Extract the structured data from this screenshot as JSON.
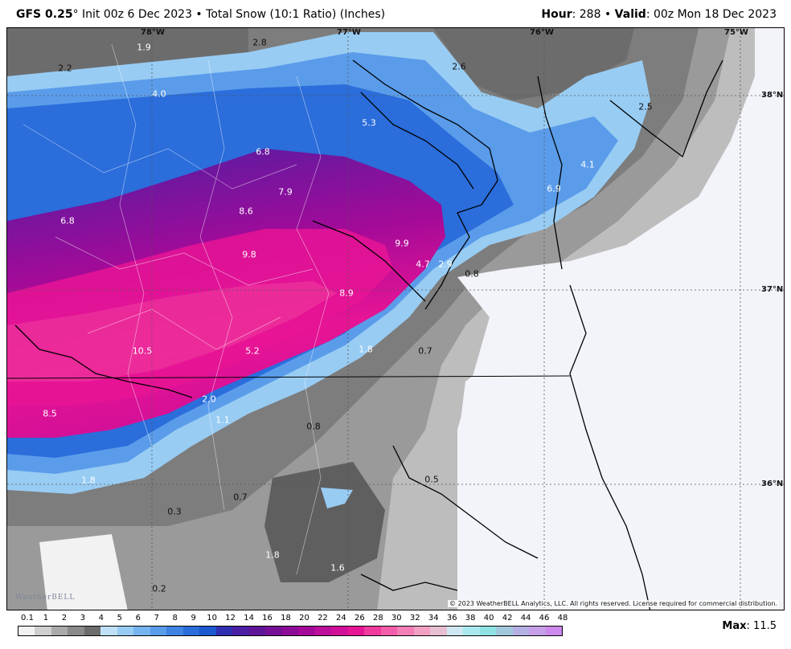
{
  "header": {
    "model": "GFS 0.25",
    "degree": "°",
    "init": " Init 00z 6 Dec 2023",
    "sep": " • ",
    "product": "Total Snow (10:1 Ratio) (Inches)",
    "hour_label": "Hour",
    "hour_value": ": 288",
    "valid_label": "Valid",
    "valid_value": ": 00z Mon 18 Dec 2023"
  },
  "axes": {
    "lon": [
      "78°W",
      "77°W",
      "76°W",
      "75°W"
    ],
    "lat": [
      "38°N",
      "37°N",
      "36°N"
    ]
  },
  "map_labels": [
    {
      "text": "1.9",
      "tone": "light"
    },
    {
      "text": "2.8",
      "tone": "dark"
    },
    {
      "text": "2.2",
      "tone": "dark"
    },
    {
      "text": "2.6",
      "tone": "dark"
    },
    {
      "text": "4.0",
      "tone": "light"
    },
    {
      "text": "5.3",
      "tone": "light"
    },
    {
      "text": "2.5",
      "tone": "dark"
    },
    {
      "text": "6.8",
      "tone": "light"
    },
    {
      "text": "4.1",
      "tone": "light"
    },
    {
      "text": "7.9",
      "tone": "light"
    },
    {
      "text": "6.9",
      "tone": "light"
    },
    {
      "text": "8.6",
      "tone": "light"
    },
    {
      "text": "6.8",
      "tone": "light"
    },
    {
      "text": "9.9",
      "tone": "light"
    },
    {
      "text": "9.8",
      "tone": "light"
    },
    {
      "text": "4.7",
      "tone": "light"
    },
    {
      "text": "2.9",
      "tone": "light"
    },
    {
      "text": "0.8",
      "tone": "dark"
    },
    {
      "text": "8.9",
      "tone": "light"
    },
    {
      "text": "10.5",
      "tone": "light"
    },
    {
      "text": "5.2",
      "tone": "light"
    },
    {
      "text": "1.8",
      "tone": "light"
    },
    {
      "text": "0.7",
      "tone": "dark"
    },
    {
      "text": "2.0",
      "tone": "light"
    },
    {
      "text": "8.5",
      "tone": "light"
    },
    {
      "text": "1.1",
      "tone": "light"
    },
    {
      "text": "0.8",
      "tone": "dark"
    },
    {
      "text": "0.5",
      "tone": "dark"
    },
    {
      "text": "1.8",
      "tone": "light"
    },
    {
      "text": "0.7",
      "tone": "dark"
    },
    {
      "text": "0.3",
      "tone": "dark"
    },
    {
      "text": "1.8",
      "tone": "light"
    },
    {
      "text": "1.6",
      "tone": "light"
    },
    {
      "text": "0.2",
      "tone": "dark"
    }
  ],
  "copyright": "© 2023 WeatherBELL Analytics, LLC. All rights reserved. License required for commercial distribution.",
  "logo": "WeatherBELL",
  "legend": {
    "ticks": [
      "0.1",
      "1",
      "2",
      "3",
      "4",
      "5",
      "6",
      "7",
      "8",
      "9",
      "10",
      "12",
      "14",
      "16",
      "18",
      "20",
      "22",
      "24",
      "26",
      "28",
      "30",
      "32",
      "34",
      "36",
      "38",
      "40",
      "42",
      "44",
      "46",
      "48"
    ],
    "colors": [
      "#f2f2f2",
      "#cfcfcf",
      "#a9a9a9",
      "#8a8a8a",
      "#6c6c6c",
      "#bfe1f7",
      "#98ccf3",
      "#76b4ef",
      "#5a9cea",
      "#3f84e3",
      "#2a6ddb",
      "#1c58cf",
      "#2f2fb0",
      "#4b1fa3",
      "#5e1496",
      "#751095",
      "#8c0c97",
      "#a40a98",
      "#bb0e9a",
      "#d10f98",
      "#e71495",
      "#f03a9e",
      "#f25eaa",
      "#f37fb6",
      "#f1a0c4",
      "#e8bfd2",
      "#cfe7f0",
      "#a9e8ee",
      "#8ee2e4",
      "#a1c8dd",
      "#b5b0e4",
      "#c79ee8",
      "#cc88ec"
    ],
    "max_label": "Max",
    "max_value": ": 11.5"
  }
}
